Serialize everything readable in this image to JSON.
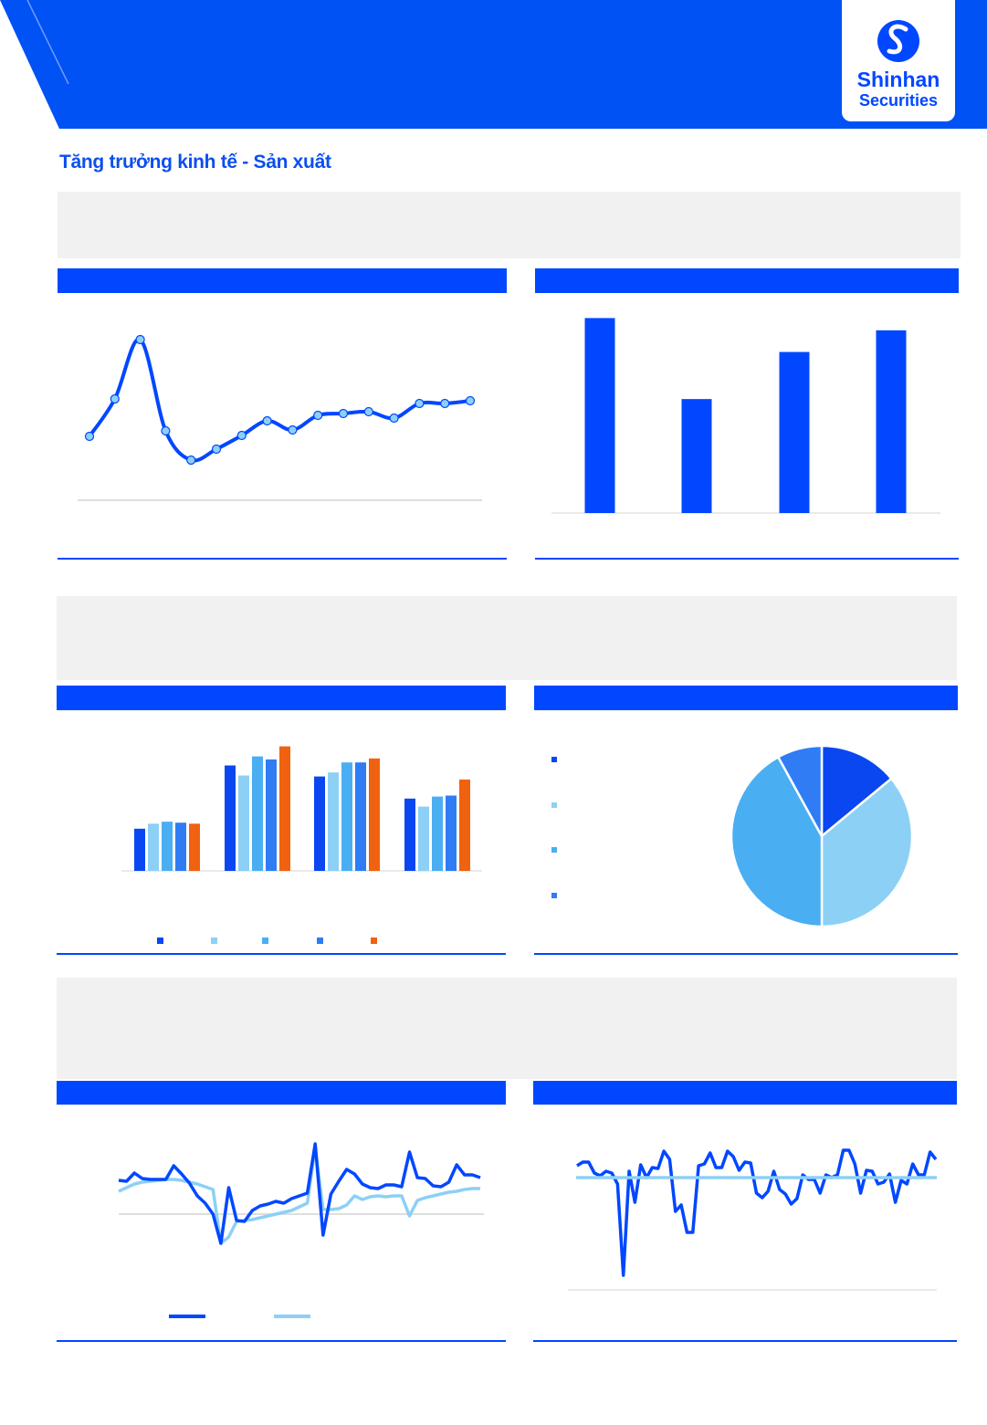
{
  "header": {
    "brand": {
      "line1": "Shinhan",
      "line2": "Securities"
    },
    "colors": {
      "primary": "#0047ff",
      "title": "#0a4ff0",
      "panel_bg": "#f1f1f1"
    }
  },
  "page_title": "Tăng trưởng kinh tế - Sản xuất",
  "chart_data": [
    {
      "type": "line",
      "smooth": true,
      "markers": true,
      "values": [
        70,
        111,
        176,
        76,
        44,
        56,
        71,
        87,
        77,
        93,
        95,
        97,
        90,
        106,
        106,
        109
      ],
      "ylim": [
        0,
        200
      ],
      "grid": false,
      "colors": {
        "line": "#0047ff",
        "marker": "#8dd0f5"
      }
    },
    {
      "type": "bar",
      "values": [
        207,
        121,
        171,
        194
      ],
      "ylim": [
        0,
        220
      ],
      "grid": false,
      "colors": {
        "bar": "#0047ff"
      }
    },
    {
      "type": "bar",
      "grouped": true,
      "series": [
        {
          "values": [
            42,
            105,
            94,
            72
          ],
          "color": "#0a47f0"
        },
        {
          "values": [
            47,
            95,
            98,
            64
          ],
          "color": "#8dd0f5"
        },
        {
          "values": [
            49,
            114,
            108,
            74
          ],
          "color": "#4aaef2"
        },
        {
          "values": [
            48,
            111,
            108,
            75
          ],
          "color": "#2f7cf5"
        },
        {
          "values": [
            47,
            124,
            112,
            91
          ],
          "color": "#f0620f"
        }
      ],
      "ylim": [
        0,
        130
      ],
      "legend": "bottom"
    },
    {
      "type": "pie",
      "values": [
        14,
        36,
        42,
        8
      ],
      "colors": [
        "#0a47f0",
        "#8dd0f5",
        "#4aaef2",
        "#2f7cf5"
      ],
      "legend": "left"
    },
    {
      "type": "line",
      "series": [
        {
          "values": [
            37,
            36,
            45,
            39,
            38,
            38,
            38,
            53,
            44,
            34,
            20,
            12,
            0,
            -32,
            29,
            -7,
            -8,
            4,
            9,
            11,
            14,
            12,
            17,
            20,
            23,
            77,
            -23,
            22,
            36,
            49,
            44,
            33,
            29,
            28,
            32,
            32,
            30,
            68,
            40,
            39,
            31,
            30,
            35,
            54,
            43,
            43,
            40
          ],
          "color": "#0047ff"
        },
        {
          "values": [
            25,
            29,
            33,
            35,
            36,
            37,
            38,
            38,
            37,
            35,
            33,
            30,
            27,
            -32,
            -25,
            -8,
            -7,
            -6,
            -4,
            -2,
            0,
            2,
            4,
            8,
            12,
            73,
            5,
            5,
            6,
            10,
            20,
            16,
            19,
            20,
            19,
            20,
            20,
            -2,
            15,
            18,
            20,
            22,
            24,
            25,
            27,
            28,
            28
          ],
          "color": "#8dd0f5"
        }
      ],
      "ylim": [
        -40,
        90
      ],
      "zero_line": true,
      "legend": "bottom"
    },
    {
      "type": "line",
      "series": [
        {
          "values": [
            136,
            140,
            140,
            128,
            125,
            130,
            128,
            116,
            16,
            130,
            96,
            137,
            123,
            134,
            133,
            152,
            143,
            86,
            93,
            63,
            63,
            136,
            138,
            150,
            134,
            134,
            152,
            146,
            131,
            140,
            139,
            106,
            101,
            108,
            130,
            110,
            105,
            94,
            100,
            126,
            121,
            121,
            106,
            126,
            123,
            126,
            153,
            153,
            138,
            106,
            131,
            130,
            116,
            118,
            127,
            96,
            120,
            116,
            138,
            126,
            126,
            151,
            143
          ],
          "color": "#0047ff"
        },
        {
          "values": [
            123,
            123
          ],
          "color": "#8dd0f5"
        }
      ],
      "ylim": [
        0,
        170
      ]
    }
  ]
}
